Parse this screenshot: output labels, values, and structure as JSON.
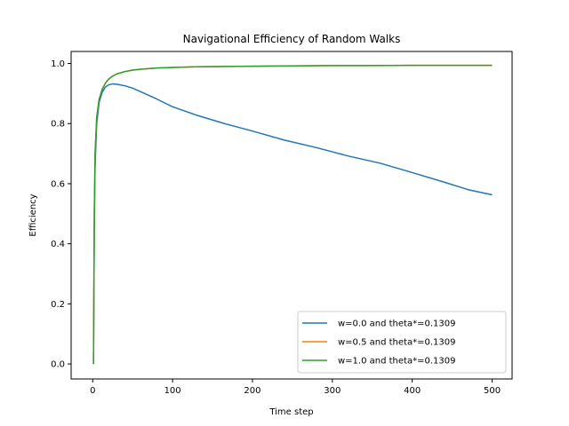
{
  "chart_data": {
    "type": "line",
    "title": "Navigational Efficiency of Random Walks",
    "xlabel": "Time step",
    "ylabel": "Efficiency",
    "xlim": [
      -27,
      525
    ],
    "ylim": [
      -0.05,
      1.04
    ],
    "xticks": [
      0,
      100,
      200,
      300,
      400,
      500
    ],
    "yticks": [
      0.0,
      0.2,
      0.4,
      0.6,
      0.8,
      1.0
    ],
    "ytick_labels": [
      "0.0",
      "0.2",
      "0.4",
      "0.6",
      "0.8",
      "1.0"
    ],
    "grid": false,
    "legend_position": "lower-right",
    "series": [
      {
        "name": "w=0.0 and theta*=0.1309",
        "color": "#1f77b4",
        "x": [
          1,
          2,
          3,
          5,
          8,
          12,
          16,
          20,
          25,
          30,
          40,
          50,
          60,
          80,
          100,
          130,
          165,
          200,
          240,
          280,
          320,
          360,
          400,
          440,
          470,
          500
        ],
        "y": [
          0.0,
          0.45,
          0.66,
          0.8,
          0.87,
          0.905,
          0.922,
          0.929,
          0.932,
          0.931,
          0.926,
          0.918,
          0.906,
          0.882,
          0.856,
          0.828,
          0.8,
          0.775,
          0.745,
          0.72,
          0.692,
          0.668,
          0.637,
          0.605,
          0.58,
          0.563
        ]
      },
      {
        "name": "w=0.5 and theta*=0.1309",
        "color": "#ff7f0e",
        "x": [
          1,
          2,
          3,
          5,
          8,
          12,
          16,
          20,
          25,
          30,
          40,
          50,
          60,
          80,
          100,
          130,
          165,
          200,
          250,
          300,
          350,
          400,
          450,
          500
        ],
        "y": [
          0.0,
          0.5,
          0.7,
          0.82,
          0.88,
          0.915,
          0.935,
          0.948,
          0.958,
          0.965,
          0.973,
          0.978,
          0.981,
          0.985,
          0.987,
          0.989,
          0.99,
          0.991,
          0.992,
          0.993,
          0.993,
          0.994,
          0.994,
          0.994
        ]
      },
      {
        "name": "w=1.0 and theta*=0.1309",
        "color": "#2ca02c",
        "x": [
          1,
          2,
          3,
          5,
          8,
          12,
          16,
          20,
          25,
          30,
          40,
          50,
          60,
          80,
          100,
          130,
          165,
          200,
          250,
          300,
          350,
          400,
          450,
          500
        ],
        "y": [
          0.0,
          0.5,
          0.7,
          0.82,
          0.88,
          0.915,
          0.935,
          0.948,
          0.958,
          0.965,
          0.973,
          0.978,
          0.981,
          0.985,
          0.987,
          0.989,
          0.99,
          0.991,
          0.992,
          0.993,
          0.993,
          0.994,
          0.994,
          0.994
        ]
      }
    ]
  }
}
